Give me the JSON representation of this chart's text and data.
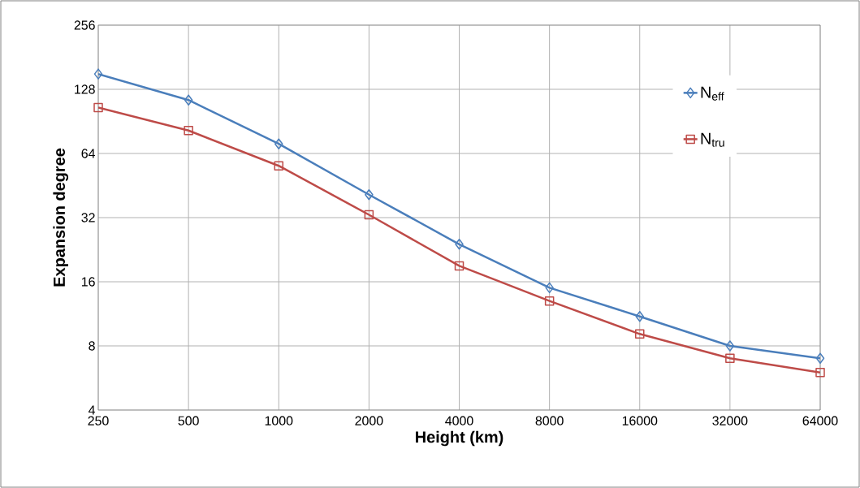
{
  "chart_data": {
    "type": "line",
    "xlabel": "Height (km)",
    "ylabel": "Expansion degree",
    "x": [
      250,
      500,
      1000,
      2000,
      4000,
      8000,
      16000,
      32000,
      64000
    ],
    "series": [
      {
        "name": "N$_{eff}$",
        "color": "#4a7ebb",
        "marker": "diamond",
        "values": [
          151,
          114,
          71,
          41,
          24,
          15,
          11,
          8,
          7
        ]
      },
      {
        "name": "N$_{tru}$",
        "color": "#be4b48",
        "marker": "square",
        "values": [
          105,
          82,
          56,
          33,
          19,
          13,
          9.1,
          7,
          6
        ]
      }
    ],
    "log": "xy",
    "xlim": [
      250,
      64000
    ],
    "ylim": [
      4,
      256
    ],
    "xticks": [
      250,
      500,
      1000,
      2000,
      4000,
      8000,
      16000,
      32000,
      64000
    ],
    "yticks": [
      4,
      8,
      16,
      32,
      64,
      128,
      256
    ],
    "grid": true,
    "legend": "right",
    "line_style": "solid"
  }
}
